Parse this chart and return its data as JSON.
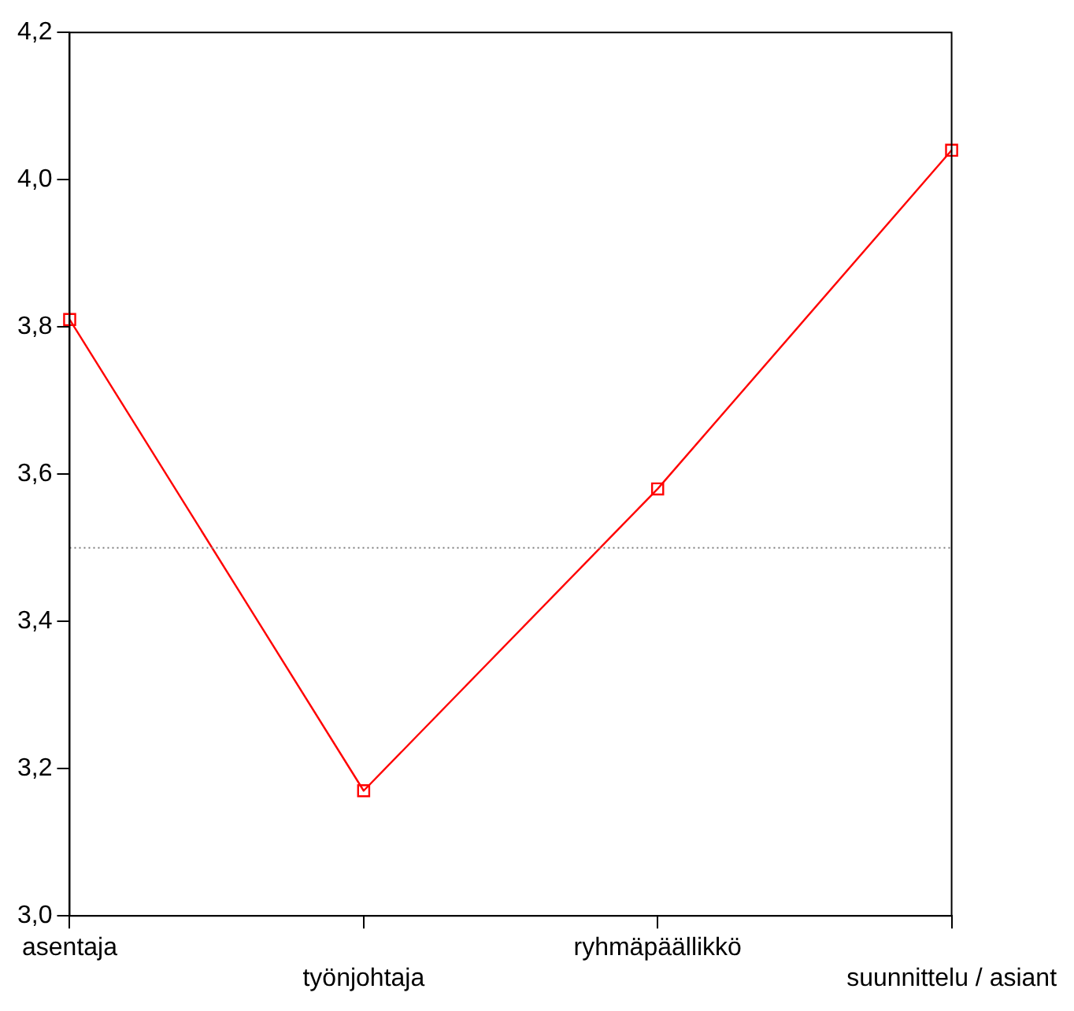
{
  "chart_data": {
    "type": "line",
    "categories": [
      "asentaja",
      "työnjohtaja",
      "ryhmäpäällikkö",
      "suunnittelu / asiant"
    ],
    "series": [
      {
        "color": "#ff0000",
        "values": [
          3.81,
          3.17,
          3.58,
          4.04
        ]
      }
    ],
    "ylim": [
      3.0,
      4.2
    ],
    "yticks": [
      {
        "value": 3.0,
        "label": "3,0"
      },
      {
        "value": 3.2,
        "label": "3,2"
      },
      {
        "value": 3.4,
        "label": "3,4"
      },
      {
        "value": 3.6,
        "label": "3,6"
      },
      {
        "value": 3.8,
        "label": "3,8"
      },
      {
        "value": 4.0,
        "label": "4,0"
      },
      {
        "value": 4.2,
        "label": "4,2"
      }
    ],
    "ref_lines": [
      {
        "axis": "y",
        "value": 3.5,
        "color": "#808080",
        "line_style": "dotted"
      }
    ],
    "grid": false,
    "legend": false,
    "marker": "square",
    "line_style": "solid"
  }
}
